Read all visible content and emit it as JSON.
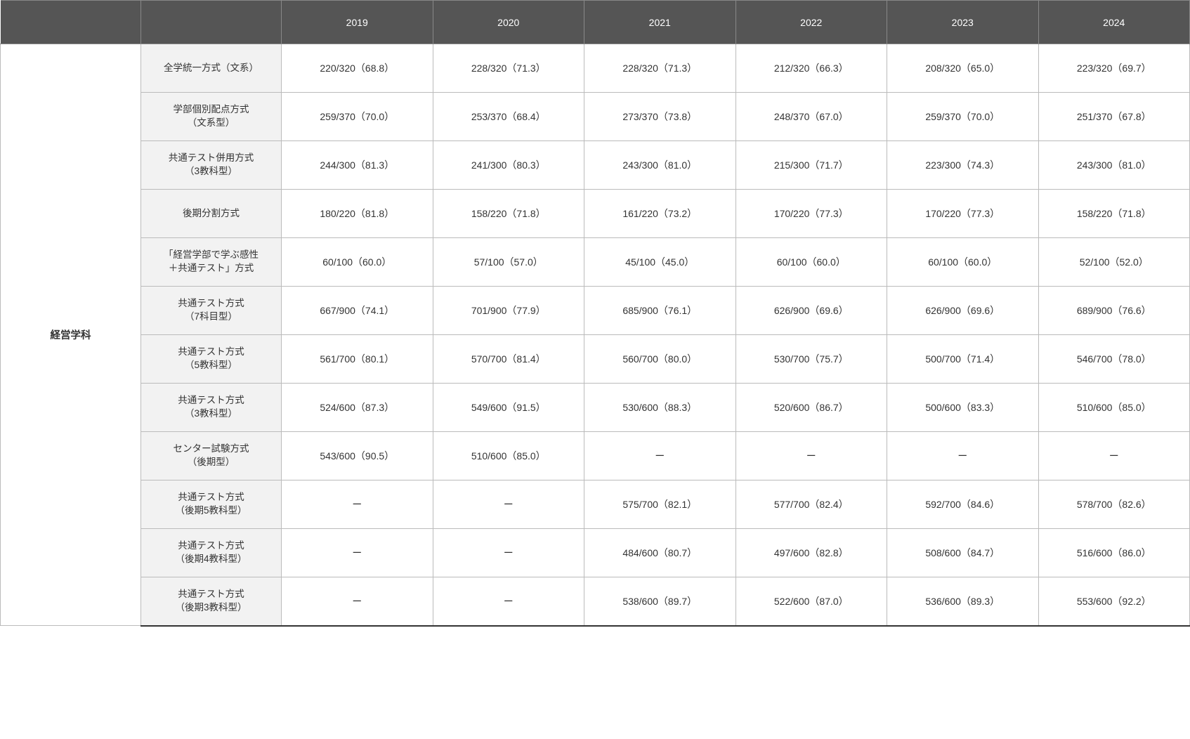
{
  "table": {
    "type": "table",
    "colors": {
      "header_bg": "#555555",
      "header_text": "#ffffff",
      "method_bg": "#f2f2f2",
      "data_bg": "#ffffff",
      "border": "#bbbbbb",
      "bottom_border": "#333333",
      "text": "#333333"
    },
    "font_sizes": {
      "header": 14,
      "dept": 14.5,
      "method": 13.5,
      "data": 14
    },
    "department": "経営学科",
    "years": [
      "2019",
      "2020",
      "2021",
      "2022",
      "2023",
      "2024"
    ],
    "methods": [
      "全学統一方式（文系）",
      "学部個別配点方式\n（文系型）",
      "共通テスト併用方式\n（3教科型）",
      "後期分割方式",
      "「経営学部で学ぶ感性\n＋共通テスト」方式",
      "共通テスト方式\n（7科目型）",
      "共通テスト方式\n（5教科型）",
      "共通テスト方式\n（3教科型）",
      "センター試験方式\n（後期型）",
      "共通テスト方式\n（後期5教科型）",
      "共通テスト方式\n（後期4教科型）",
      "共通テスト方式\n（後期3教科型）"
    ],
    "rows": [
      [
        "220/320（68.8）",
        "228/320（71.3）",
        "228/320（71.3）",
        "212/320（66.3）",
        "208/320（65.0）",
        "223/320（69.7）"
      ],
      [
        "259/370（70.0）",
        "253/370（68.4）",
        "273/370（73.8）",
        "248/370（67.0）",
        "259/370（70.0）",
        "251/370（67.8）"
      ],
      [
        "244/300（81.3）",
        "241/300（80.3）",
        "243/300（81.0）",
        "215/300（71.7）",
        "223/300（74.3）",
        "243/300（81.0）"
      ],
      [
        "180/220（81.8）",
        "158/220（71.8）",
        "161/220（73.2）",
        "170/220（77.3）",
        "170/220（77.3）",
        "158/220（71.8）"
      ],
      [
        "60/100（60.0）",
        "57/100（57.0）",
        "45/100（45.0）",
        "60/100（60.0）",
        "60/100（60.0）",
        "52/100（52.0）"
      ],
      [
        "667/900（74.1）",
        "701/900（77.9）",
        "685/900（76.1）",
        "626/900（69.6）",
        "626/900（69.6）",
        "689/900（76.6）"
      ],
      [
        "561/700（80.1）",
        "570/700（81.4）",
        "560/700（80.0）",
        "530/700（75.7）",
        "500/700（71.4）",
        "546/700（78.0）"
      ],
      [
        "524/600（87.3）",
        "549/600（91.5）",
        "530/600（88.3）",
        "520/600（86.7）",
        "500/600（83.3）",
        "510/600（85.0）"
      ],
      [
        "543/600（90.5）",
        "510/600（85.0）",
        "ー",
        "ー",
        "ー",
        "ー"
      ],
      [
        "ー",
        "ー",
        "575/700（82.1）",
        "577/700（82.4）",
        "592/700（84.6）",
        "578/700（82.6）"
      ],
      [
        "ー",
        "ー",
        "484/600（80.7）",
        "497/600（82.8）",
        "508/600（84.7）",
        "516/600（86.0）"
      ],
      [
        "ー",
        "ー",
        "538/600（89.7）",
        "522/600（87.0）",
        "536/600（89.3）",
        "553/600（92.2）"
      ]
    ]
  }
}
